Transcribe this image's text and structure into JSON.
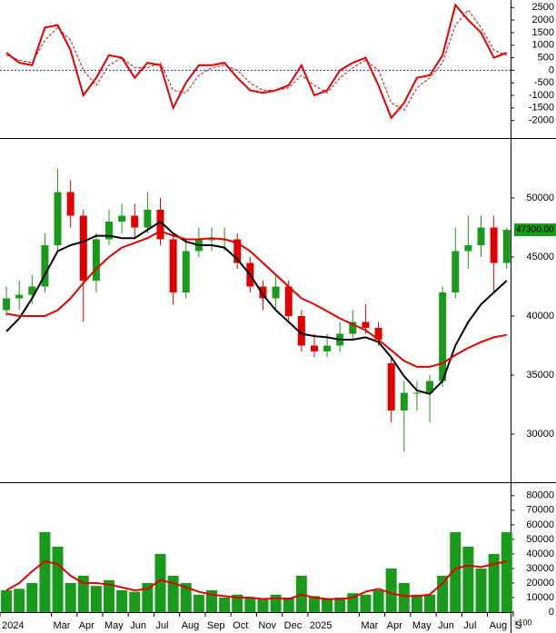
{
  "chart_data": [
    {
      "type": "line",
      "x": [
        0.25,
        0.75,
        1.25,
        1.75,
        2.25,
        2.75,
        3.25,
        3.75,
        4.25,
        4.75,
        5.25,
        5.75,
        6.25,
        6.75,
        7.25,
        7.75,
        8.25,
        8.75,
        9.25,
        9.75,
        10.25,
        10.75,
        11.25,
        11.75,
        12.25,
        12.75,
        13.25,
        13.75,
        14.25,
        14.75,
        15.25,
        15.75,
        16.25,
        16.75,
        17.25,
        17.75,
        18.25,
        18.75,
        19.25,
        19.75
      ],
      "series": [
        {
          "color": "#e00000",
          "dash": false,
          "values": [
            700,
            300,
            200,
            1700,
            1800,
            800,
            -1000,
            -300,
            600,
            500,
            -300,
            300,
            200,
            -1500,
            -500,
            200,
            200,
            300,
            -300,
            -800,
            -900,
            -800,
            -600,
            200,
            -1000,
            -800,
            0,
            300,
            500,
            -600,
            -1900,
            -1300,
            -300,
            -200,
            600,
            2600,
            2000,
            1500,
            500,
            700
          ]
        },
        {
          "color": "#e00000",
          "dash": true,
          "values": [
            600,
            400,
            300,
            1200,
            1700,
            1200,
            0,
            -600,
            200,
            500,
            100,
            100,
            300,
            -800,
            -900,
            -200,
            100,
            200,
            0,
            -500,
            -800,
            -800,
            -700,
            -200,
            -600,
            -900,
            -300,
            100,
            400,
            0,
            -1300,
            -1600,
            -700,
            -300,
            300,
            1800,
            2400,
            1700,
            800,
            600
          ]
        }
      ],
      "xlim": [
        0,
        19.9
      ],
      "ylim": [
        -2700,
        2800
      ],
      "yticks": [
        2500,
        2000,
        1500,
        1000,
        500,
        0,
        -500,
        -1000,
        -1500,
        -2000
      ]
    },
    {
      "type": "candlestick",
      "x": [
        0.25,
        0.75,
        1.25,
        1.75,
        2.25,
        2.75,
        3.25,
        3.75,
        4.25,
        4.75,
        5.25,
        5.75,
        6.25,
        6.75,
        7.25,
        7.75,
        8.25,
        8.75,
        9.25,
        9.75,
        10.25,
        10.75,
        11.25,
        11.75,
        12.25,
        12.75,
        13.25,
        13.75,
        14.25,
        14.75,
        15.25,
        15.75,
        16.25,
        16.75,
        17.25,
        17.75,
        18.25,
        18.75,
        19.25,
        19.75
      ],
      "open": [
        40500,
        41500,
        41800,
        42500,
        46000,
        50500,
        48500,
        43000,
        46500,
        48000,
        48500,
        47500,
        49000,
        46500,
        42000,
        45500,
        46500,
        46500,
        46500,
        44500,
        42500,
        41500,
        42500,
        40000,
        37500,
        37000,
        37500,
        38500,
        39500,
        39000,
        36000,
        32000,
        33500,
        33500,
        34500,
        42000,
        45500,
        46000,
        47500,
        44500
      ],
      "high": [
        42500,
        43000,
        43500,
        47000,
        52500,
        51500,
        49000,
        47000,
        49000,
        49500,
        49500,
        50500,
        50000,
        47000,
        46500,
        47500,
        47500,
        47500,
        47000,
        45000,
        43000,
        43500,
        43000,
        40500,
        38500,
        38500,
        39500,
        40500,
        41000,
        39500,
        36500,
        34500,
        34500,
        35000,
        42500,
        47500,
        48500,
        48500,
        48500,
        47500
      ],
      "low": [
        40000,
        40500,
        41000,
        42000,
        45500,
        47500,
        39500,
        42000,
        46000,
        47000,
        46500,
        47000,
        46000,
        41000,
        41500,
        45000,
        45500,
        45500,
        44000,
        42000,
        40500,
        40500,
        39500,
        37000,
        36500,
        36500,
        37000,
        38000,
        38500,
        37500,
        31000,
        28500,
        32000,
        31000,
        34000,
        41500,
        44000,
        45000,
        42000,
        44000
      ],
      "close": [
        41500,
        41800,
        42500,
        46000,
        50500,
        48500,
        43000,
        46500,
        48000,
        48500,
        47500,
        49000,
        46500,
        42000,
        45500,
        46500,
        46500,
        46500,
        44500,
        42500,
        41500,
        42500,
        40000,
        37500,
        37000,
        37500,
        38500,
        39500,
        39000,
        38000,
        32000,
        33500,
        33500,
        34500,
        42000,
        45500,
        46000,
        47500,
        44500,
        47300
      ],
      "series": [
        {
          "color": "#000000",
          "values": [
            38700,
            39800,
            41500,
            43500,
            45500,
            46000,
            46300,
            46800,
            46800,
            46600,
            46600,
            47300,
            48000,
            47000,
            46300,
            46000,
            46000,
            45800,
            44800,
            43500,
            41800,
            40500,
            39500,
            38500,
            38300,
            38200,
            38000,
            38000,
            38200,
            37800,
            36500,
            34900,
            33700,
            33400,
            34500,
            37500,
            39500,
            41000,
            42000,
            43000
          ]
        },
        {
          "color": "#e00000",
          "values": [
            40200,
            40000,
            40000,
            40000,
            40500,
            41500,
            42800,
            44000,
            45000,
            45800,
            46200,
            46600,
            47200,
            46800,
            46500,
            46500,
            46600,
            46500,
            46200,
            45500,
            44500,
            43500,
            42500,
            41500,
            41000,
            40400,
            39800,
            39300,
            38800,
            38000,
            37100,
            36200,
            35700,
            35700,
            36000,
            36700,
            37300,
            37800,
            38200,
            38400
          ]
        }
      ],
      "last_price": {
        "value": 47300,
        "label": "47300.00"
      },
      "xlim": [
        0,
        19.9
      ],
      "ylim": [
        26000,
        55000
      ],
      "yticks": [
        30000,
        35000,
        40000,
        45000,
        50000
      ]
    },
    {
      "type": "bar",
      "x": [
        0.25,
        0.75,
        1.25,
        1.75,
        2.25,
        2.75,
        3.25,
        3.75,
        4.25,
        4.75,
        5.25,
        5.75,
        6.25,
        6.75,
        7.25,
        7.75,
        8.25,
        8.75,
        9.25,
        9.75,
        10.25,
        10.75,
        11.25,
        11.75,
        12.25,
        12.75,
        13.25,
        13.75,
        14.25,
        14.75,
        15.25,
        15.75,
        16.25,
        16.75,
        17.25,
        17.75,
        18.25,
        18.75,
        19.25,
        19.75
      ],
      "values": [
        15000,
        16000,
        20000,
        55000,
        45000,
        20000,
        25000,
        18000,
        22000,
        15000,
        14000,
        20000,
        40000,
        25000,
        20000,
        12000,
        15000,
        10000,
        12000,
        10000,
        9000,
        12000,
        10000,
        25000,
        11000,
        9000,
        10000,
        13000,
        12000,
        15000,
        30000,
        20000,
        12000,
        12000,
        25000,
        55000,
        45000,
        30000,
        40000,
        55000
      ],
      "color": "#1a9a1a",
      "series": [
        {
          "color": "#e00000",
          "values": [
            15000,
            20000,
            28000,
            35000,
            33000,
            25000,
            20000,
            20000,
            19000,
            17000,
            15000,
            16000,
            22000,
            20000,
            17000,
            14000,
            12000,
            11000,
            10000,
            10000,
            9000,
            9500,
            9000,
            12000,
            10000,
            9000,
            9000,
            10000,
            14000,
            16000,
            13000,
            11000,
            11000,
            12000,
            20000,
            30000,
            32000,
            31000,
            33000,
            35000
          ]
        }
      ],
      "unit_label": "x100",
      "xlim": [
        0,
        19.9
      ],
      "ylim": [
        0,
        88000
      ],
      "yticks": [
        0,
        10000,
        20000,
        30000,
        40000,
        50000,
        60000,
        70000,
        80000
      ],
      "xticks": [
        {
          "value": 0,
          "label": "2024"
        },
        {
          "value": 2,
          "label": "Mar"
        },
        {
          "value": 3,
          "label": "Apr"
        },
        {
          "value": 4,
          "label": "May"
        },
        {
          "value": 5,
          "label": "Jun"
        },
        {
          "value": 6,
          "label": "Jul"
        },
        {
          "value": 7,
          "label": "Aug"
        },
        {
          "value": 8,
          "label": "Sep"
        },
        {
          "value": 9,
          "label": "Oct"
        },
        {
          "value": 10,
          "label": "Nov"
        },
        {
          "value": 11,
          "label": "Dec"
        },
        {
          "value": 12,
          "label": "2025"
        },
        {
          "value": 14,
          "label": "Mar"
        },
        {
          "value": 15,
          "label": "Apr"
        },
        {
          "value": 16,
          "label": "May"
        },
        {
          "value": 17,
          "label": "Jun"
        },
        {
          "value": 18,
          "label": "Jul"
        },
        {
          "value": 19,
          "label": "Aug"
        },
        {
          "value": 20,
          "label": "S"
        }
      ]
    }
  ]
}
